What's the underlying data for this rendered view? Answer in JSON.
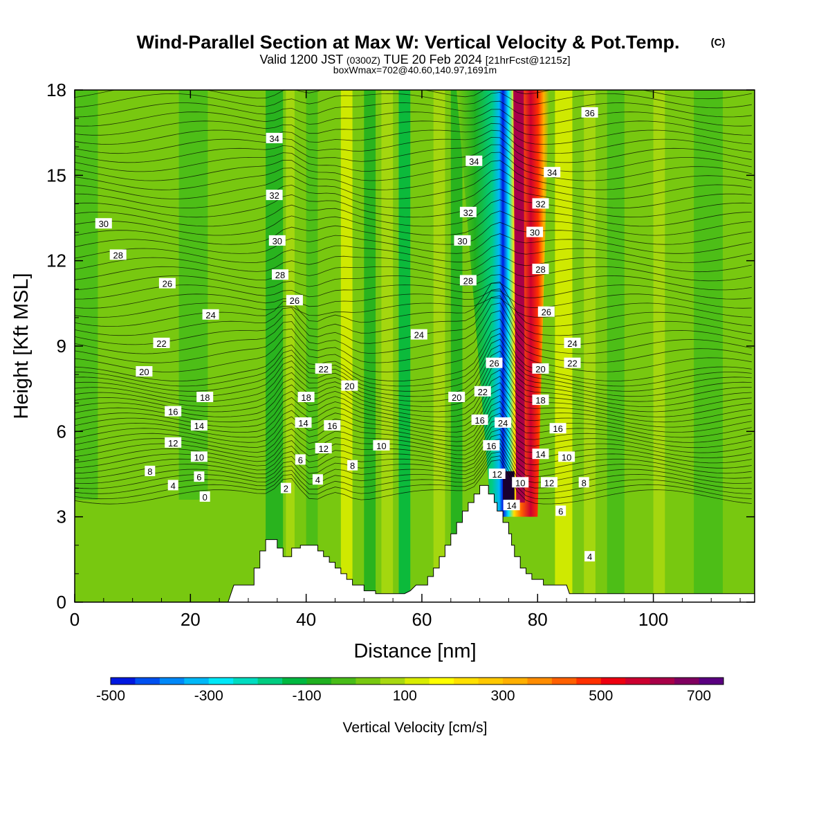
{
  "title": {
    "main": "Wind-Parallel Section at Max W: Vertical Velocity & Pot.Temp.",
    "copyright": "(C)",
    "valid_prefix": "Valid 1200 JST",
    "valid_zone": "(0300Z)",
    "valid_date": "TUE 20 Feb 2024",
    "valid_fcst": "[21hrFcst@1215z]",
    "boxline": "boxWmax=702@40.60,140.97,1691m"
  },
  "chart_data": {
    "type": "heatmap",
    "xlabel": "Distance [nm]",
    "ylabel": "Height [Kft MSL]",
    "xlim": [
      0,
      117.5
    ],
    "ylim": [
      0,
      18
    ],
    "x_ticks": [
      0,
      20,
      40,
      60,
      80,
      100
    ],
    "y_ticks": [
      0,
      3,
      6,
      9,
      12,
      15,
      18
    ],
    "colorbar": {
      "label": "Vertical Velocity [cm/s]",
      "range": [
        -500,
        750
      ],
      "step": 50,
      "tick_labels": [
        "-500",
        "-300",
        "-100",
        "100",
        "300",
        "500",
        "700"
      ],
      "tick_values": [
        -500,
        -300,
        -100,
        100,
        300,
        500,
        700
      ],
      "colors": [
        "#0018e0",
        "#0050f0",
        "#0088f8",
        "#00b8f8",
        "#00e8f8",
        "#00dcc0",
        "#00cc80",
        "#00b840",
        "#20b020",
        "#48bc18",
        "#78c810",
        "#a8d810",
        "#d8ec00",
        "#ffff00",
        "#ffe000",
        "#ffc800",
        "#ffb000",
        "#ff8c00",
        "#ff6000",
        "#ff3000",
        "#ee0010",
        "#cc0030",
        "#a80048",
        "#800060",
        "#5a0080"
      ]
    },
    "terrain_profile": [
      [
        0,
        0
      ],
      [
        26.5,
        0
      ],
      [
        27.5,
        0.6
      ],
      [
        31,
        0.6
      ],
      [
        31,
        1.2
      ],
      [
        32,
        1.2
      ],
      [
        32,
        1.8
      ],
      [
        33,
        1.8
      ],
      [
        33,
        2.2
      ],
      [
        35,
        2.2
      ],
      [
        35,
        1.9
      ],
      [
        36,
        1.9
      ],
      [
        36,
        1.6
      ],
      [
        37.5,
        1.6
      ],
      [
        37.5,
        1.9
      ],
      [
        39,
        1.9
      ],
      [
        39,
        2.0
      ],
      [
        42,
        2.0
      ],
      [
        42,
        1.8
      ],
      [
        43,
        1.8
      ],
      [
        43,
        1.6
      ],
      [
        44,
        1.6
      ],
      [
        44,
        1.4
      ],
      [
        45,
        1.4
      ],
      [
        45,
        1.2
      ],
      [
        46,
        1.2
      ],
      [
        46,
        1.0
      ],
      [
        47,
        1.0
      ],
      [
        47,
        0.8
      ],
      [
        48,
        0.8
      ],
      [
        48,
        0.6
      ],
      [
        50,
        0.6
      ],
      [
        50,
        0.4
      ],
      [
        52,
        0.4
      ],
      [
        52,
        0.3
      ],
      [
        57,
        0.3
      ],
      [
        58,
        0.4
      ],
      [
        59,
        0.6
      ],
      [
        61,
        0.6
      ],
      [
        61,
        0.9
      ],
      [
        62,
        0.9
      ],
      [
        62,
        1.2
      ],
      [
        63,
        1.2
      ],
      [
        63,
        1.6
      ],
      [
        64,
        1.6
      ],
      [
        64,
        2.0
      ],
      [
        65,
        2.0
      ],
      [
        65,
        2.4
      ],
      [
        66,
        2.4
      ],
      [
        66,
        2.8
      ],
      [
        67,
        2.8
      ],
      [
        67,
        3.2
      ],
      [
        68,
        3.2
      ],
      [
        68,
        3.5
      ],
      [
        69,
        3.5
      ],
      [
        69,
        3.8
      ],
      [
        70,
        3.8
      ],
      [
        70,
        4.1
      ],
      [
        71.5,
        4.1
      ],
      [
        71.5,
        3.8
      ],
      [
        72.5,
        3.8
      ],
      [
        72.5,
        3.5
      ],
      [
        73,
        3.5
      ],
      [
        73,
        3.2
      ],
      [
        74,
        3.2
      ],
      [
        74,
        2.8
      ],
      [
        75,
        2.8
      ],
      [
        75,
        2.4
      ],
      [
        75.5,
        2.4
      ],
      [
        75.5,
        2.0
      ],
      [
        76,
        2.0
      ],
      [
        76,
        1.6
      ],
      [
        77,
        1.6
      ],
      [
        77,
        1.2
      ],
      [
        78,
        1.2
      ],
      [
        78,
        1.0
      ],
      [
        79,
        1.0
      ],
      [
        79,
        0.8
      ],
      [
        81,
        0.8
      ],
      [
        81,
        0.6
      ],
      [
        85,
        0.6
      ],
      [
        85.5,
        0.3
      ],
      [
        117.5,
        0.3
      ]
    ],
    "theta_labels": [
      {
        "text": "30",
        "x": 5,
        "y": 13.3
      },
      {
        "text": "28",
        "x": 7.5,
        "y": 12.2
      },
      {
        "text": "26",
        "x": 16,
        "y": 11.2
      },
      {
        "text": "24",
        "x": 23.5,
        "y": 10.1
      },
      {
        "text": "22",
        "x": 15,
        "y": 9.1
      },
      {
        "text": "20",
        "x": 12,
        "y": 8.1
      },
      {
        "text": "18",
        "x": 22.5,
        "y": 7.2
      },
      {
        "text": "16",
        "x": 17,
        "y": 6.7
      },
      {
        "text": "14",
        "x": 21.5,
        "y": 6.2
      },
      {
        "text": "12",
        "x": 17,
        "y": 5.6
      },
      {
        "text": "10",
        "x": 21.5,
        "y": 5.1
      },
      {
        "text": "8",
        "x": 13,
        "y": 4.6
      },
      {
        "text": "6",
        "x": 21.5,
        "y": 4.4
      },
      {
        "text": "4",
        "x": 17,
        "y": 4.1
      },
      {
        "text": "0",
        "x": 22.5,
        "y": 3.7
      },
      {
        "text": "34",
        "x": 34.5,
        "y": 16.3
      },
      {
        "text": "32",
        "x": 34.5,
        "y": 14.3
      },
      {
        "text": "30",
        "x": 35,
        "y": 12.7
      },
      {
        "text": "28",
        "x": 35.5,
        "y": 11.5
      },
      {
        "text": "26",
        "x": 38,
        "y": 10.6
      },
      {
        "text": "22",
        "x": 43,
        "y": 8.2
      },
      {
        "text": "18",
        "x": 40,
        "y": 7.2
      },
      {
        "text": "14",
        "x": 39.5,
        "y": 6.3
      },
      {
        "text": "16",
        "x": 44.5,
        "y": 6.2
      },
      {
        "text": "12",
        "x": 43,
        "y": 5.4
      },
      {
        "text": "6",
        "x": 39,
        "y": 5.0
      },
      {
        "text": "4",
        "x": 42,
        "y": 4.3
      },
      {
        "text": "2",
        "x": 36.5,
        "y": 4.0
      },
      {
        "text": "20",
        "x": 47.5,
        "y": 7.6
      },
      {
        "text": "8",
        "x": 48,
        "y": 4.8
      },
      {
        "text": "10",
        "x": 53,
        "y": 5.5
      },
      {
        "text": "24",
        "x": 59.5,
        "y": 9.4
      },
      {
        "text": "34",
        "x": 69,
        "y": 15.5
      },
      {
        "text": "32",
        "x": 68,
        "y": 13.7
      },
      {
        "text": "30",
        "x": 67,
        "y": 12.7
      },
      {
        "text": "28",
        "x": 68,
        "y": 11.3
      },
      {
        "text": "26",
        "x": 72.5,
        "y": 8.4
      },
      {
        "text": "20",
        "x": 66,
        "y": 7.2
      },
      {
        "text": "22",
        "x": 70.5,
        "y": 7.4
      },
      {
        "text": "16",
        "x": 70,
        "y": 6.4
      },
      {
        "text": "24",
        "x": 74,
        "y": 6.3
      },
      {
        "text": "16",
        "x": 72,
        "y": 5.5
      },
      {
        "text": "12",
        "x": 73,
        "y": 4.5
      },
      {
        "text": "10",
        "x": 77,
        "y": 4.2
      },
      {
        "text": "14",
        "x": 75.5,
        "y": 3.4
      },
      {
        "text": "36",
        "x": 89,
        "y": 17.2
      },
      {
        "text": "34",
        "x": 82.5,
        "y": 15.1
      },
      {
        "text": "32",
        "x": 80.5,
        "y": 14.0
      },
      {
        "text": "30",
        "x": 79.5,
        "y": 13.0
      },
      {
        "text": "28",
        "x": 80.5,
        "y": 11.7
      },
      {
        "text": "26",
        "x": 81.5,
        "y": 10.2
      },
      {
        "text": "24",
        "x": 86,
        "y": 9.1
      },
      {
        "text": "22",
        "x": 86,
        "y": 8.4
      },
      {
        "text": "20",
        "x": 80.5,
        "y": 8.2
      },
      {
        "text": "18",
        "x": 80.5,
        "y": 7.1
      },
      {
        "text": "16",
        "x": 83.5,
        "y": 6.1
      },
      {
        "text": "14",
        "x": 80.5,
        "y": 5.2
      },
      {
        "text": "10",
        "x": 85,
        "y": 5.1
      },
      {
        "text": "12",
        "x": 82,
        "y": 4.2
      },
      {
        "text": "8",
        "x": 88,
        "y": 4.2
      },
      {
        "text": "6",
        "x": 84,
        "y": 3.2
      },
      {
        "text": "4",
        "x": 89,
        "y": 1.6
      }
    ]
  }
}
